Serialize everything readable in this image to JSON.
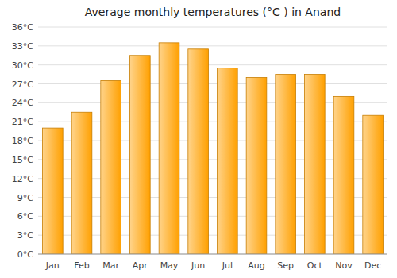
{
  "chart_data": {
    "type": "bar",
    "title": "Average monthly temperatures (°C ) in Ānand",
    "categories": [
      "Jan",
      "Feb",
      "Mar",
      "Apr",
      "May",
      "Jun",
      "Jul",
      "Aug",
      "Sep",
      "Oct",
      "Nov",
      "Dec"
    ],
    "values": [
      20.0,
      22.5,
      27.5,
      31.5,
      33.5,
      32.5,
      29.5,
      28.0,
      28.5,
      28.5,
      25.0,
      22.0
    ],
    "color": "#FFA000",
    "ylim": [
      0,
      36
    ],
    "yticks": [
      {
        "value": 0,
        "label": "0°C"
      },
      {
        "value": 3,
        "label": "3°C"
      },
      {
        "value": 6,
        "label": "6°C"
      },
      {
        "value": 9,
        "label": "9°C"
      },
      {
        "value": 12,
        "label": "12°C"
      },
      {
        "value": 15,
        "label": "15°C"
      },
      {
        "value": 18,
        "label": "18°C"
      },
      {
        "value": 21,
        "label": "21°C"
      },
      {
        "value": 24,
        "label": "24°C"
      },
      {
        "value": 27,
        "label": "27°C"
      },
      {
        "value": 30,
        "label": "30°C"
      },
      {
        "value": 33,
        "label": "33°C"
      },
      {
        "value": 36,
        "label": "36°C"
      }
    ],
    "grid": true
  }
}
